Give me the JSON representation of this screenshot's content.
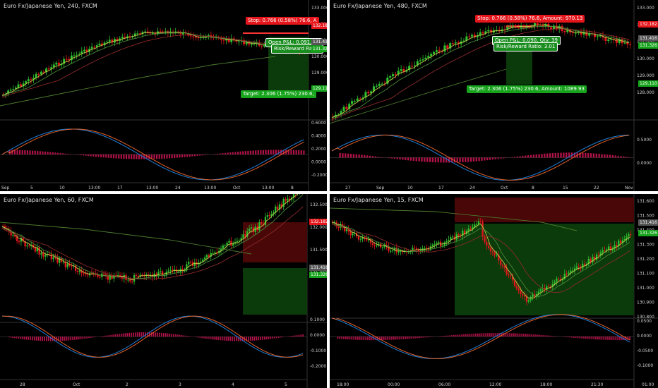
{
  "colors": {
    "up": "#2ec02f",
    "down": "#e4161b",
    "ma1": "#c8c84a",
    "ma2": "#4a8a3a",
    "ma3": "#8b2a2a",
    "ma4": "#4b7a2e",
    "macd": "#1e7fd8",
    "signal": "#e2622a",
    "hist": "#b3124a",
    "zoneRed": "#5a0a0a",
    "zoneGreen": "#0b3a0b"
  },
  "panels": [
    {
      "id": "p1",
      "title": "Euro Fx/Japanese Yen, 240, FXCM",
      "price_labels": [
        "133.000",
        "132.000",
        "131.000",
        "130.000",
        "129.000",
        "128.000"
      ],
      "osc_labels": [
        "0.6000",
        "0.4000",
        "0.2000",
        "0.0000",
        "-0.2000"
      ],
      "time_labels": [
        "Sep",
        "5",
        "10",
        "13:00",
        "17",
        "13:00",
        "24",
        "13:00",
        "Oct",
        "13:00",
        "8"
      ],
      "tags": {
        "stop": "132.182",
        "open1": "131.416",
        "open2": "131.326",
        "target": "129.110"
      },
      "stop_text": "Stop: 0.766 (0.58%) 76.6, A",
      "open_text": "Open P&L: 0.091, Qt",
      "rr_text": "Risk/Reward Ratio:",
      "target_text": "Target: 2.306 (1.75%) 230.6,"
    },
    {
      "id": "p2",
      "title": "Euro Fx/Japanese Yen, 480, FXCM",
      "price_labels": [
        "133.000",
        "132.000",
        "131.000",
        "130.000",
        "129.000",
        "128.000"
      ],
      "osc_labels": [
        "0.5000",
        "0.0000"
      ],
      "time_labels": [
        "27",
        "Sep",
        "10",
        "17",
        "24",
        "Oct",
        "8",
        "15",
        "22",
        "Nov"
      ],
      "tags": {
        "stop": "132.182",
        "open1": "131.416",
        "open2": "131.326",
        "target": "129.110"
      },
      "stop_text": "Stop: 0.766 (0.58%) 76.6, Amount: 970.13",
      "open_text": "Open P&L: 0.090, Qty: 39",
      "rr_text": "Risk/Reward Ratio: 3.01",
      "target_text": "Target: 2.306 (1.75%) 230.6, Amount: 1089.93"
    },
    {
      "id": "p3",
      "title": "Euro Fx/Japanese Yen, 60, FXCM",
      "price_labels": [
        "132.500",
        "132.000",
        "131.500",
        "131.000"
      ],
      "osc_labels": [
        "0.1000",
        "0.0000",
        "-0.1000",
        "-0.2000"
      ],
      "time_labels": [
        "28",
        "Oct",
        "2",
        "3",
        "4",
        "5"
      ],
      "tags": {
        "stop": "132.182",
        "open1": "131.416",
        "open2": "131.326"
      }
    },
    {
      "id": "p4",
      "title": "Euro Fx/Japanese Yen, 15, FXCM",
      "price_labels": [
        "131.600",
        "131.500",
        "131.400",
        "131.300",
        "131.200",
        "131.100",
        "131.000",
        "130.900",
        "130.800"
      ],
      "osc_labels": [
        "0.0500",
        "0.0000",
        "-0.0500",
        "-0.1000"
      ],
      "time_labels": [
        "18:00",
        "00:00",
        "06:00",
        "12:00",
        "18:00",
        "21:30",
        "01:00"
      ],
      "tags": {
        "open1": "131.416",
        "open2": "131.326"
      }
    }
  ]
}
